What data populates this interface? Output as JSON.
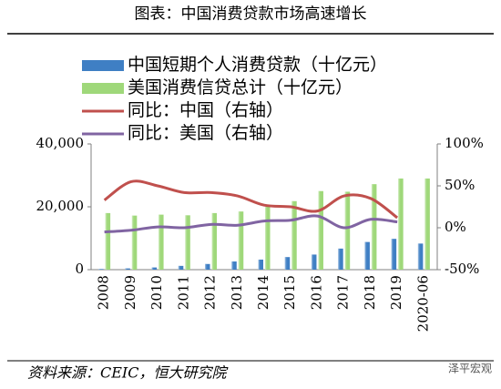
{
  "chart_data": {
    "type": "bar_line",
    "title": "图表：中国消费贷款市场高速增长",
    "source": "资料来源：CEIC，恒大研究院",
    "watermark": "泽平宏观",
    "categories": [
      "2008",
      "2009",
      "2010",
      "2011",
      "2012",
      "2013",
      "2014",
      "2015",
      "2016",
      "2017",
      "2018",
      "2019",
      "2020-06"
    ],
    "series": [
      {
        "name": "中国短期个人消费贷款（十亿元）",
        "type": "bar",
        "color": "#3f7fc4",
        "values": [
          200,
          400,
          700,
          1200,
          1800,
          2600,
          3200,
          4000,
          4800,
          6700,
          8800,
          9800,
          8300
        ]
      },
      {
        "name": "美国消费信贷总计（十亿元）",
        "type": "bar",
        "color": "#9fd87a",
        "values": [
          18000,
          17200,
          17500,
          17300,
          18000,
          18500,
          20000,
          21800,
          25000,
          24800,
          27200,
          29000,
          29000
        ]
      },
      {
        "name": "同比：中国（右轴）",
        "type": "line",
        "axis": "y2",
        "color": "#c0504d",
        "values": [
          33,
          55,
          50,
          42,
          42,
          38,
          27,
          25,
          20,
          38,
          35,
          12,
          null
        ]
      },
      {
        "name": "同比：美国（右轴）",
        "type": "line",
        "axis": "y2",
        "color": "#8064a2",
        "values": [
          -5,
          -3,
          1,
          0,
          4,
          3,
          8,
          9,
          14,
          0,
          10,
          7,
          null
        ]
      }
    ],
    "ylim": [
      0,
      40000
    ],
    "yticks": [
      0,
      {
        "value": 20000,
        "label": "20,000"
      },
      {
        "value": 40000,
        "label": "40,000"
      }
    ],
    "y2lim": [
      -50,
      100
    ],
    "y2ticks": [
      {
        "value": -50,
        "label": "-50%"
      },
      {
        "value": 0,
        "label": "0%"
      },
      {
        "value": 50,
        "label": "50%"
      },
      {
        "value": 100,
        "label": "100%"
      }
    ],
    "grid": false
  }
}
